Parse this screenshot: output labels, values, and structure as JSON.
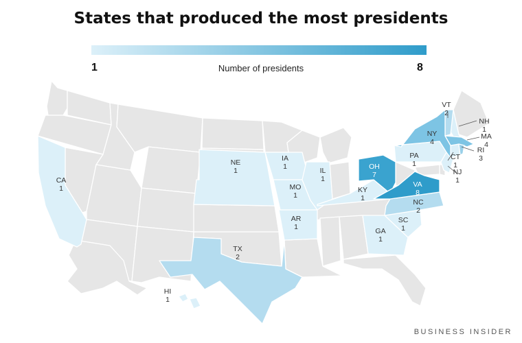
{
  "title": "States that produced the most presidents",
  "legend": {
    "min": "1",
    "max": "8",
    "label": "Number of presidents",
    "color_low": "#dcf0f9",
    "color_high": "#2f9cca"
  },
  "source": "BUSINESS INSIDER",
  "colors": {
    "land": "#e6e6e6",
    "border": "#ffffff"
  },
  "states": [
    {
      "abbr": "CA",
      "count": "1"
    },
    {
      "abbr": "TX",
      "count": "2"
    },
    {
      "abbr": "NE",
      "count": "1"
    },
    {
      "abbr": "IA",
      "count": "1"
    },
    {
      "abbr": "MO",
      "count": "1"
    },
    {
      "abbr": "AR",
      "count": "1"
    },
    {
      "abbr": "IL",
      "count": "1"
    },
    {
      "abbr": "KY",
      "count": "1"
    },
    {
      "abbr": "OH",
      "count": "7"
    },
    {
      "abbr": "PA",
      "count": "1"
    },
    {
      "abbr": "NY",
      "count": "4"
    },
    {
      "abbr": "VA",
      "count": "8"
    },
    {
      "abbr": "NC",
      "count": "2"
    },
    {
      "abbr": "SC",
      "count": "1"
    },
    {
      "abbr": "GA",
      "count": "1"
    },
    {
      "abbr": "VT",
      "count": "2"
    },
    {
      "abbr": "NH",
      "count": "1"
    },
    {
      "abbr": "MA",
      "count": "4"
    },
    {
      "abbr": "RI",
      "count": "3"
    },
    {
      "abbr": "CT",
      "count": "1"
    },
    {
      "abbr": "NJ",
      "count": "1"
    },
    {
      "abbr": "HI",
      "count": "1"
    }
  ]
}
